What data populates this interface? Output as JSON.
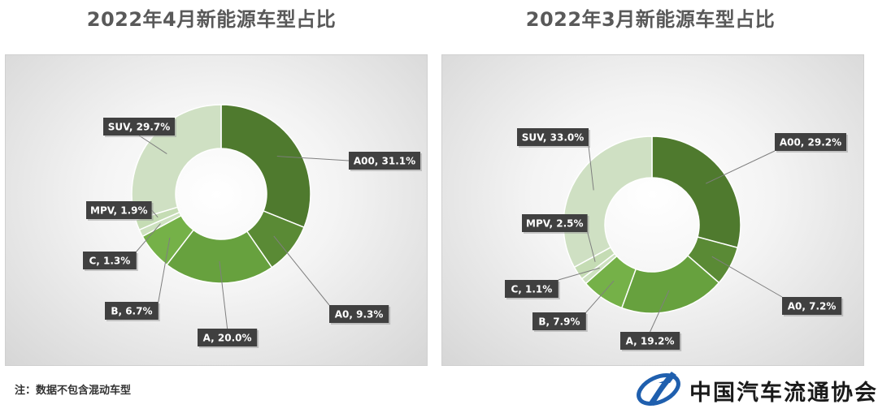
{
  "note": "注：数据不包含混动车型",
  "logo": {
    "text": "中国汽车流通协会"
  },
  "colors": {
    "A00": "#4f7a2e",
    "A0": "#5a8a35",
    "A": "#67a13e",
    "B": "#75b148",
    "C": "#cde1bf",
    "MPV": "#c5dcb4",
    "SUV": "#cfe0c3",
    "label_bg": "#404040",
    "label_text": "#ffffff"
  },
  "chart_data": [
    {
      "type": "pie",
      "title": "2022年4月新能源车型占比",
      "categories": [
        "A00",
        "A0",
        "A",
        "B",
        "C",
        "MPV",
        "SUV"
      ],
      "values": [
        31.1,
        9.3,
        20.0,
        6.7,
        1.3,
        1.9,
        29.7
      ],
      "labels": [
        "A00, 31.1%",
        "A0, 9.3%",
        "A, 20.0%",
        "B, 6.7%",
        "C, 1.3%",
        "MPV, 1.9%",
        "SUV, 29.7%"
      ]
    },
    {
      "type": "pie",
      "title": "2022年3月新能源车型占比",
      "categories": [
        "A00",
        "A0",
        "A",
        "B",
        "C",
        "MPV",
        "SUV"
      ],
      "values": [
        29.2,
        7.2,
        19.2,
        7.9,
        1.1,
        2.5,
        33.0
      ],
      "labels": [
        "A00, 29.2%",
        "A0, 7.2%",
        "A, 19.2%",
        "B, 7.9%",
        "C, 1.1%",
        "MPV, 2.5%",
        "SUV, 33.0%"
      ]
    }
  ]
}
